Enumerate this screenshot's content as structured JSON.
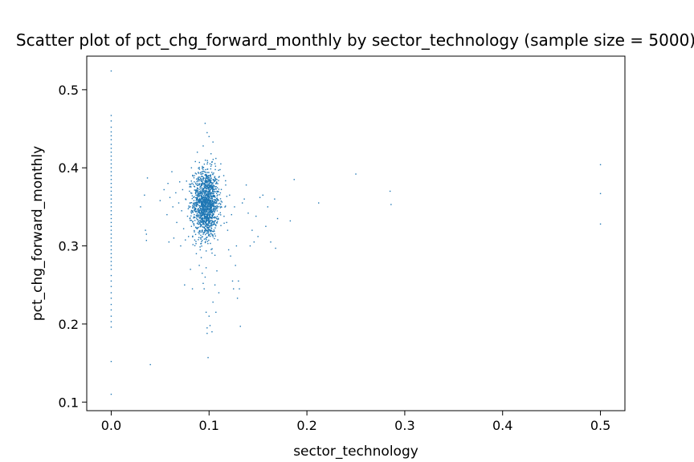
{
  "chart_data": {
    "type": "scatter",
    "title": "Scatter plot of pct_chg_forward_monthly by sector_technology (sample size = 5000)",
    "xlabel": "sector_technology",
    "ylabel": "pct_chg_forward_monthly",
    "xlim": [
      -0.025,
      0.525
    ],
    "ylim": [
      0.089,
      0.543
    ],
    "xticks": [
      0.0,
      0.1,
      0.2,
      0.3,
      0.4,
      0.5
    ],
    "xtick_labels": [
      "0.0",
      "0.1",
      "0.2",
      "0.3",
      "0.4",
      "0.5"
    ],
    "yticks": [
      0.1,
      0.2,
      0.3,
      0.4,
      0.5
    ],
    "ytick_labels": [
      "0.1",
      "0.2",
      "0.3",
      "0.4",
      "0.5"
    ],
    "grid": false,
    "marker_color": "#1f77b4",
    "points": [
      [
        0.0,
        0.524
      ],
      [
        0.0,
        0.467
      ],
      [
        0.0,
        0.46
      ],
      [
        0.0,
        0.452
      ],
      [
        0.0,
        0.446
      ],
      [
        0.0,
        0.441
      ],
      [
        0.0,
        0.436
      ],
      [
        0.0,
        0.43
      ],
      [
        0.0,
        0.425
      ],
      [
        0.0,
        0.42
      ],
      [
        0.0,
        0.415
      ],
      [
        0.0,
        0.41
      ],
      [
        0.0,
        0.405
      ],
      [
        0.0,
        0.4
      ],
      [
        0.0,
        0.395
      ],
      [
        0.0,
        0.39
      ],
      [
        0.0,
        0.385
      ],
      [
        0.0,
        0.38
      ],
      [
        0.0,
        0.375
      ],
      [
        0.0,
        0.37
      ],
      [
        0.0,
        0.365
      ],
      [
        0.0,
        0.36
      ],
      [
        0.0,
        0.355
      ],
      [
        0.0,
        0.35
      ],
      [
        0.0,
        0.345
      ],
      [
        0.0,
        0.34
      ],
      [
        0.0,
        0.335
      ],
      [
        0.0,
        0.33
      ],
      [
        0.0,
        0.325
      ],
      [
        0.0,
        0.32
      ],
      [
        0.0,
        0.315
      ],
      [
        0.0,
        0.31
      ],
      [
        0.0,
        0.305
      ],
      [
        0.0,
        0.3
      ],
      [
        0.0,
        0.295
      ],
      [
        0.0,
        0.29
      ],
      [
        0.0,
        0.285
      ],
      [
        0.0,
        0.28
      ],
      [
        0.0,
        0.275
      ],
      [
        0.0,
        0.27
      ],
      [
        0.0,
        0.262
      ],
      [
        0.0,
        0.255
      ],
      [
        0.0,
        0.248
      ],
      [
        0.0,
        0.24
      ],
      [
        0.0,
        0.233
      ],
      [
        0.0,
        0.225
      ],
      [
        0.0,
        0.218
      ],
      [
        0.0,
        0.21
      ],
      [
        0.0,
        0.203
      ],
      [
        0.0,
        0.196
      ],
      [
        0.0,
        0.152
      ],
      [
        0.0,
        0.11
      ],
      [
        0.03,
        0.35
      ],
      [
        0.034,
        0.365
      ],
      [
        0.035,
        0.32
      ],
      [
        0.036,
        0.315
      ],
      [
        0.036,
        0.307
      ],
      [
        0.037,
        0.387
      ],
      [
        0.04,
        0.148
      ],
      [
        0.05,
        0.358
      ],
      [
        0.054,
        0.372
      ],
      [
        0.057,
        0.34
      ],
      [
        0.058,
        0.38
      ],
      [
        0.059,
        0.305
      ],
      [
        0.06,
        0.362
      ],
      [
        0.062,
        0.395
      ],
      [
        0.063,
        0.35
      ],
      [
        0.064,
        0.31
      ],
      [
        0.066,
        0.368
      ],
      [
        0.067,
        0.33
      ],
      [
        0.069,
        0.355
      ],
      [
        0.07,
        0.382
      ],
      [
        0.071,
        0.3
      ],
      [
        0.072,
        0.345
      ],
      [
        0.073,
        0.372
      ],
      [
        0.074,
        0.322
      ],
      [
        0.075,
        0.25
      ],
      [
        0.076,
        0.36
      ],
      [
        0.077,
        0.383
      ],
      [
        0.078,
        0.338
      ],
      [
        0.079,
        0.312
      ],
      [
        0.08,
        0.37
      ],
      [
        0.081,
        0.27
      ],
      [
        0.081,
        0.355
      ],
      [
        0.082,
        0.4
      ],
      [
        0.082,
        0.325
      ],
      [
        0.083,
        0.245
      ],
      [
        0.084,
        0.362
      ],
      [
        0.085,
        0.318
      ],
      [
        0.086,
        0.408
      ],
      [
        0.087,
        0.29
      ],
      [
        0.088,
        0.42
      ],
      [
        0.089,
        0.308
      ],
      [
        0.09,
        0.275
      ],
      [
        0.091,
        0.295
      ],
      [
        0.092,
        0.285
      ],
      [
        0.093,
        0.265
      ],
      [
        0.094,
        0.252
      ],
      [
        0.095,
        0.245
      ],
      [
        0.096,
        0.26
      ],
      [
        0.097,
        0.272
      ],
      [
        0.097,
        0.215
      ],
      [
        0.098,
        0.195
      ],
      [
        0.098,
        0.188
      ],
      [
        0.099,
        0.157
      ],
      [
        0.1,
        0.21
      ],
      [
        0.101,
        0.198
      ],
      [
        0.103,
        0.19
      ],
      [
        0.104,
        0.228
      ],
      [
        0.106,
        0.25
      ],
      [
        0.107,
        0.215
      ],
      [
        0.108,
        0.268
      ],
      [
        0.11,
        0.24
      ],
      [
        0.096,
        0.457
      ],
      [
        0.098,
        0.445
      ],
      [
        0.1,
        0.44
      ],
      [
        0.094,
        0.428
      ],
      [
        0.104,
        0.433
      ],
      [
        0.102,
        0.418
      ],
      [
        0.107,
        0.412
      ],
      [
        0.112,
        0.405
      ],
      [
        0.115,
        0.39
      ],
      [
        0.117,
        0.378
      ],
      [
        0.118,
        0.33
      ],
      [
        0.119,
        0.32
      ],
      [
        0.12,
        0.295
      ],
      [
        0.121,
        0.365
      ],
      [
        0.122,
        0.287
      ],
      [
        0.123,
        0.34
      ],
      [
        0.124,
        0.255
      ],
      [
        0.125,
        0.245
      ],
      [
        0.126,
        0.35
      ],
      [
        0.127,
        0.275
      ],
      [
        0.128,
        0.3
      ],
      [
        0.129,
        0.233
      ],
      [
        0.13,
        0.255
      ],
      [
        0.131,
        0.245
      ],
      [
        0.132,
        0.197
      ],
      [
        0.134,
        0.355
      ],
      [
        0.136,
        0.36
      ],
      [
        0.138,
        0.378
      ],
      [
        0.14,
        0.342
      ],
      [
        0.142,
        0.3
      ],
      [
        0.144,
        0.32
      ],
      [
        0.146,
        0.305
      ],
      [
        0.148,
        0.338
      ],
      [
        0.15,
        0.312
      ],
      [
        0.152,
        0.362
      ],
      [
        0.155,
        0.365
      ],
      [
        0.158,
        0.325
      ],
      [
        0.16,
        0.35
      ],
      [
        0.163,
        0.305
      ],
      [
        0.167,
        0.36
      ],
      [
        0.168,
        0.297
      ],
      [
        0.17,
        0.335
      ],
      [
        0.183,
        0.332
      ],
      [
        0.187,
        0.385
      ],
      [
        0.212,
        0.355
      ],
      [
        0.25,
        0.392
      ],
      [
        0.285,
        0.37
      ],
      [
        0.286,
        0.353
      ],
      [
        0.5,
        0.404
      ],
      [
        0.5,
        0.367
      ],
      [
        0.5,
        0.328
      ]
    ],
    "dense_cluster": {
      "x_center": 0.097,
      "x_spread": 0.012,
      "y_center": 0.354,
      "y_spread": 0.022,
      "count": 1400
    }
  }
}
